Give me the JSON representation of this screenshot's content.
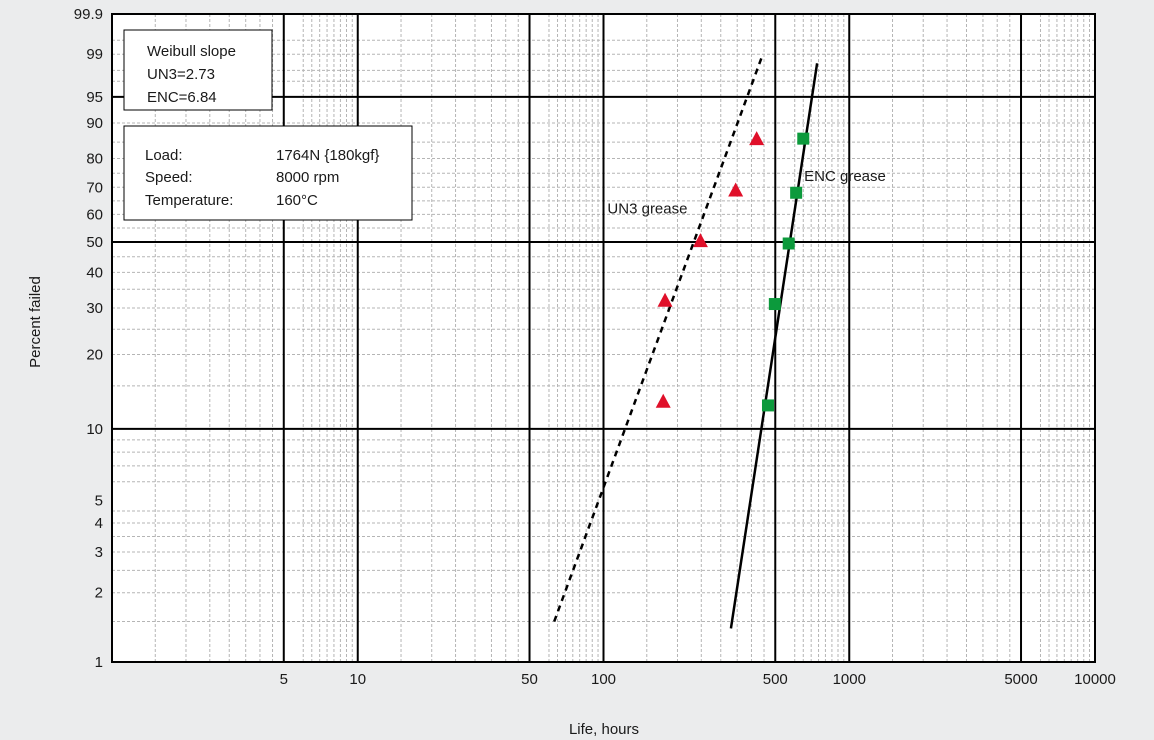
{
  "chart_data": {
    "type": "scatter",
    "scale": "weibull-probability",
    "xlabel": "Life, hours",
    "ylabel": "Percent failed",
    "x_scale": "log",
    "y_scale": "weibull",
    "xlim": [
      1,
      10000
    ],
    "ylim": [
      1,
      99.9
    ],
    "x_ticks": [
      {
        "value": 5,
        "label": "5"
      },
      {
        "value": 10,
        "label": "10"
      },
      {
        "value": 50,
        "label": "50"
      },
      {
        "value": 100,
        "label": "100"
      },
      {
        "value": 500,
        "label": "500"
      },
      {
        "value": 1000,
        "label": "1000"
      },
      {
        "value": 5000,
        "label": "5000"
      },
      {
        "value": 10000,
        "label": "10000"
      }
    ],
    "y_ticks": [
      {
        "value": 1,
        "label": "1"
      },
      {
        "value": 2,
        "label": "2"
      },
      {
        "value": 3,
        "label": "3"
      },
      {
        "value": 4,
        "label": "4"
      },
      {
        "value": 5,
        "label": "5"
      },
      {
        "value": 10,
        "label": "10"
      },
      {
        "value": 20,
        "label": "20"
      },
      {
        "value": 30,
        "label": "30"
      },
      {
        "value": 40,
        "label": "40"
      },
      {
        "value": 50,
        "label": "50"
      },
      {
        "value": 60,
        "label": "60"
      },
      {
        "value": 70,
        "label": "70"
      },
      {
        "value": 80,
        "label": "80"
      },
      {
        "value": 90,
        "label": "90"
      },
      {
        "value": 95,
        "label": "95"
      },
      {
        "value": 99,
        "label": "99"
      },
      {
        "value": 99.9,
        "label": "99.9"
      }
    ],
    "grid": true,
    "series": [
      {
        "name": "UN3 grease",
        "marker": "triangle",
        "color": "#e0102a",
        "points": [
          {
            "x": 175,
            "y": 13
          },
          {
            "x": 178,
            "y": 32
          },
          {
            "x": 248,
            "y": 50.5
          },
          {
            "x": 345,
            "y": 69
          },
          {
            "x": 420,
            "y": 86
          }
        ],
        "fit_line": {
          "style": "dashed",
          "x": [
            63,
            445
          ],
          "y": [
            1.5,
            99
          ]
        }
      },
      {
        "name": "ENC grease",
        "marker": "square",
        "color": "#0c9a3c",
        "points": [
          {
            "x": 467,
            "y": 12.5
          },
          {
            "x": 498,
            "y": 31
          },
          {
            "x": 567,
            "y": 49.5
          },
          {
            "x": 608,
            "y": 68
          },
          {
            "x": 650,
            "y": 86
          }
        ],
        "fit_line": {
          "style": "solid",
          "x": [
            330,
            740
          ],
          "y": [
            1.4,
            98.5
          ]
        }
      }
    ],
    "annotations": {
      "slope_box": {
        "title": "Weibull slope",
        "lines": [
          "UN3=2.73",
          "ENC=6.84"
        ]
      },
      "conditions_box": [
        {
          "label": "Load:",
          "value": "1764N {180kgf}"
        },
        {
          "label": "Speed:",
          "value": "8000 rpm"
        },
        {
          "label": "Temperature:",
          "value": "160°C"
        }
      ]
    },
    "colors": {
      "background": "#ebeced",
      "plot_background": "#ffffff",
      "major_grid": "#000000",
      "minor_grid": "#b5b5b5"
    }
  }
}
